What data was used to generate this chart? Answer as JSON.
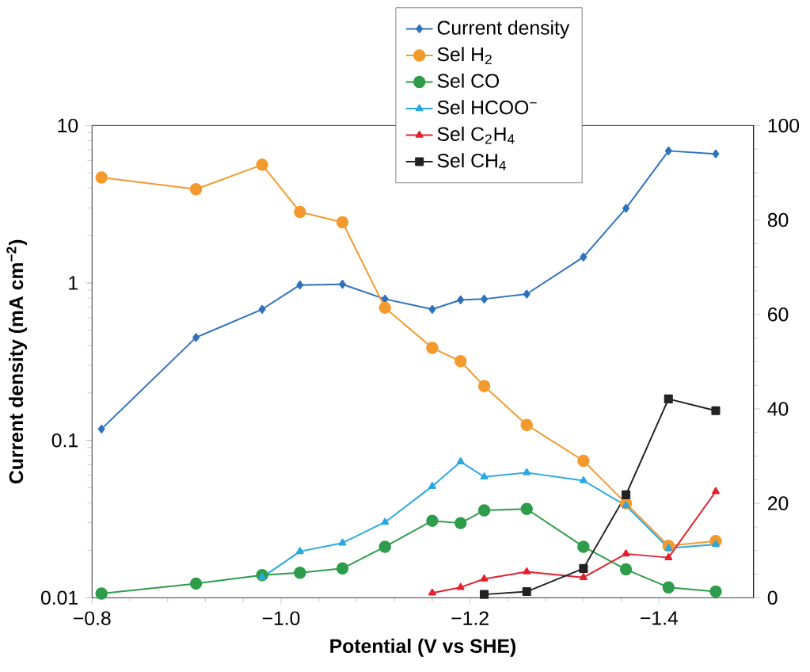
{
  "chart_data": {
    "type": "line",
    "xlabel": "Potential (V vs SHE)",
    "ylabel": "Current density (mA cm$^{−2}$)",
    "xlim": [
      -0.8,
      -1.5
    ],
    "xticks": [
      {
        "value": -0.8,
        "label": "−0.8"
      },
      {
        "value": -1.0,
        "label": "−1.0"
      },
      {
        "value": -1.2,
        "label": "−1.2"
      },
      {
        "value": -1.4,
        "label": "−1.4"
      }
    ],
    "ylim": [
      0.01,
      10
    ],
    "yticks": [
      0.01,
      0.1,
      1,
      10
    ],
    "log": "y",
    "y2lim": [
      0,
      100
    ],
    "y2ticks": [
      0,
      20,
      40,
      60,
      80,
      100
    ],
    "legend": "top",
    "line_style": "solid",
    "series": [
      {
        "name": "Current density",
        "color": "#2e72bd",
        "marker": "diamond",
        "axis": "y",
        "x": [
          -0.81,
          -0.91,
          -0.98,
          -1.02,
          -1.065,
          -1.11,
          -1.16,
          -1.19,
          -1.215,
          -1.26,
          -1.32,
          -1.365,
          -1.41,
          -1.46
        ],
        "values": [
          0.118,
          0.45,
          0.68,
          0.97,
          0.98,
          0.79,
          0.68,
          0.78,
          0.79,
          0.85,
          1.46,
          2.98,
          6.9,
          6.6
        ]
      },
      {
        "name": "Sel H$_{2}$",
        "color": "#f39a2e",
        "marker": "circle",
        "axis": "y2",
        "x": [
          -0.81,
          -0.91,
          -0.98,
          -1.02,
          -1.065,
          -1.11,
          -1.16,
          -1.19,
          -1.215,
          -1.26,
          -1.32,
          -1.365,
          -1.41,
          -1.46
        ],
        "values": [
          89.0,
          86.5,
          91.7,
          81.7,
          79.5,
          61.4,
          52.9,
          50.1,
          44.8,
          36.6,
          29.0,
          20.0,
          11.0,
          12.0
        ]
      },
      {
        "name": "Sel CO",
        "color": "#2e9c4a",
        "marker": "circle",
        "axis": "y2",
        "x": [
          -0.81,
          -0.91,
          -0.98,
          -1.02,
          -1.065,
          -1.11,
          -1.16,
          -1.19,
          -1.215,
          -1.26,
          -1.32,
          -1.365,
          -1.41,
          -1.46
        ],
        "values": [
          0.9,
          3.0,
          4.8,
          5.3,
          6.2,
          10.8,
          16.3,
          15.8,
          18.5,
          18.8,
          10.8,
          6.0,
          2.2,
          1.3
        ]
      },
      {
        "name": "Sel HCOO$^{−}$",
        "color": "#29a9e0",
        "marker": "triangle",
        "axis": "y2",
        "x": [
          -0.98,
          -1.02,
          -1.065,
          -1.11,
          -1.16,
          -1.19,
          -1.215,
          -1.26,
          -1.32,
          -1.365,
          -1.41,
          -1.46
        ],
        "values": [
          4.3,
          9.8,
          11.6,
          16.0,
          23.6,
          28.8,
          25.6,
          26.5,
          24.8,
          19.5,
          10.5,
          11.3
        ]
      },
      {
        "name": "Sel C$_{2}$H$_{4}$",
        "color": "#e3202f",
        "marker": "triangle",
        "axis": "y2",
        "x": [
          -1.16,
          -1.19,
          -1.215,
          -1.26,
          -1.32,
          -1.365,
          -1.41,
          -1.46
        ],
        "values": [
          1.0,
          2.2,
          4.0,
          5.5,
          4.3,
          9.3,
          8.5,
          22.5
        ]
      },
      {
        "name": "Sel CH$_{4}$",
        "color": "#222222",
        "marker": "square",
        "axis": "y2",
        "x": [
          -1.215,
          -1.26,
          -1.32,
          -1.365,
          -1.41,
          -1.46
        ],
        "values": [
          0.7,
          1.3,
          6.2,
          21.8,
          42.1,
          39.6
        ]
      }
    ]
  }
}
